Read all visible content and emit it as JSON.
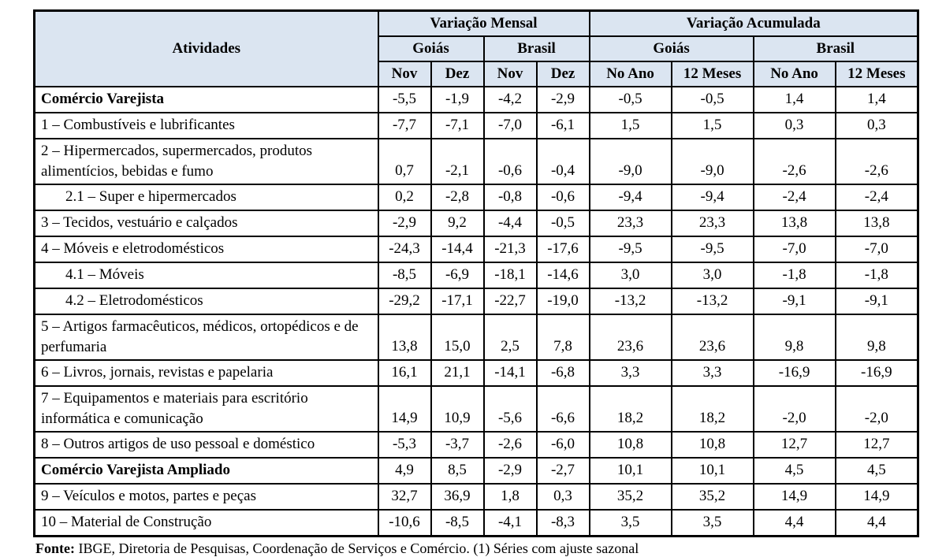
{
  "table": {
    "col_header": "Atividades",
    "groups": [
      {
        "label": "Variação Mensal",
        "regions": [
          {
            "label": "Goiás",
            "cols": [
              "Nov",
              "Dez"
            ]
          },
          {
            "label": "Brasil",
            "cols": [
              "Nov",
              "Dez"
            ]
          }
        ]
      },
      {
        "label": "Variação Acumulada",
        "regions": [
          {
            "label": "Goiás",
            "cols": [
              "No Ano",
              "12 Meses"
            ]
          },
          {
            "label": "Brasil",
            "cols": [
              "No Ano",
              "12 Meses"
            ]
          }
        ]
      }
    ],
    "rows": [
      {
        "label": "Comércio Varejista",
        "bold": true,
        "indent": false,
        "values": [
          "-5,5",
          "-1,9",
          "-4,2",
          "-2,9",
          "-0,5",
          "-0,5",
          "1,4",
          "1,4"
        ]
      },
      {
        "label": "1 – Combustíveis e lubrificantes",
        "bold": false,
        "indent": false,
        "values": [
          "-7,7",
          "-7,1",
          "-7,0",
          "-6,1",
          "1,5",
          "1,5",
          "0,3",
          "0,3"
        ]
      },
      {
        "label": "2 – Hipermercados, supermercados, produtos alimentícios, bebidas e fumo",
        "bold": false,
        "indent": false,
        "values": [
          "0,7",
          "-2,1",
          "-0,6",
          "-0,4",
          "-9,0",
          "-9,0",
          "-2,6",
          "-2,6"
        ]
      },
      {
        "label": "2.1 – Super e hipermercados",
        "bold": false,
        "indent": true,
        "values": [
          "0,2",
          "-2,8",
          "-0,8",
          "-0,6",
          "-9,4",
          "-9,4",
          "-2,4",
          "-2,4"
        ]
      },
      {
        "label": "3 – Tecidos, vestuário e calçados",
        "bold": false,
        "indent": false,
        "values": [
          "-2,9",
          "9,2",
          "-4,4",
          "-0,5",
          "23,3",
          "23,3",
          "13,8",
          "13,8"
        ]
      },
      {
        "label": "4 – Móveis e eletrodomésticos",
        "bold": false,
        "indent": false,
        "values": [
          "-24,3",
          "-14,4",
          "-21,3",
          "-17,6",
          "-9,5",
          "-9,5",
          "-7,0",
          "-7,0"
        ]
      },
      {
        "label": "4.1 – Móveis",
        "bold": false,
        "indent": true,
        "values": [
          "-8,5",
          "-6,9",
          "-18,1",
          "-14,6",
          "3,0",
          "3,0",
          "-1,8",
          "-1,8"
        ]
      },
      {
        "label": "4.2 – Eletrodomésticos",
        "bold": false,
        "indent": true,
        "values": [
          "-29,2",
          "-17,1",
          "-22,7",
          "-19,0",
          "-13,2",
          "-13,2",
          "-9,1",
          "-9,1"
        ]
      },
      {
        "label": "5 – Artigos farmacêuticos, médicos, ortopédicos e de perfumaria",
        "bold": false,
        "indent": false,
        "values": [
          "13,8",
          "15,0",
          "2,5",
          "7,8",
          "23,6",
          "23,6",
          "9,8",
          "9,8"
        ]
      },
      {
        "label": "6 – Livros, jornais, revistas e papelaria",
        "bold": false,
        "indent": false,
        "values": [
          "16,1",
          "21,1",
          "-14,1",
          "-6,8",
          "3,3",
          "3,3",
          "-16,9",
          "-16,9"
        ]
      },
      {
        "label": "7 – Equipamentos e materiais para escritório informática e comunicação",
        "bold": false,
        "indent": false,
        "values": [
          "14,9",
          "10,9",
          "-5,6",
          "-6,6",
          "18,2",
          "18,2",
          "-2,0",
          "-2,0"
        ]
      },
      {
        "label": "8 – Outros artigos de uso pessoal e doméstico",
        "bold": false,
        "indent": false,
        "values": [
          "-5,3",
          "-3,7",
          "-2,6",
          "-6,0",
          "10,8",
          "10,8",
          "12,7",
          "12,7"
        ]
      },
      {
        "label": "Comércio Varejista Ampliado",
        "bold": true,
        "indent": false,
        "values": [
          "4,9",
          "8,5",
          "-2,9",
          "-2,7",
          "10,1",
          "10,1",
          "4,5",
          "4,5"
        ]
      },
      {
        "label": "9 – Veículos e motos, partes e peças",
        "bold": false,
        "indent": false,
        "values": [
          "32,7",
          "36,9",
          "1,8",
          "0,3",
          "35,2",
          "35,2",
          "14,9",
          "14,9"
        ]
      },
      {
        "label": "10 – Material de Construção",
        "bold": false,
        "indent": false,
        "values": [
          "-10,6",
          "-8,5",
          "-4,1",
          "-8,3",
          "3,5",
          "3,5",
          "4,4",
          "4,4"
        ]
      }
    ]
  },
  "footer": {
    "source_label": "Fonte:",
    "source_text": " IBGE, Diretoria de Pesquisas, Coordenação de Serviços e Comércio. (1) Séries com ajuste sazonal"
  },
  "colors": {
    "header_fill": "#dbe5f1",
    "border": "#000000",
    "text": "#000000"
  }
}
